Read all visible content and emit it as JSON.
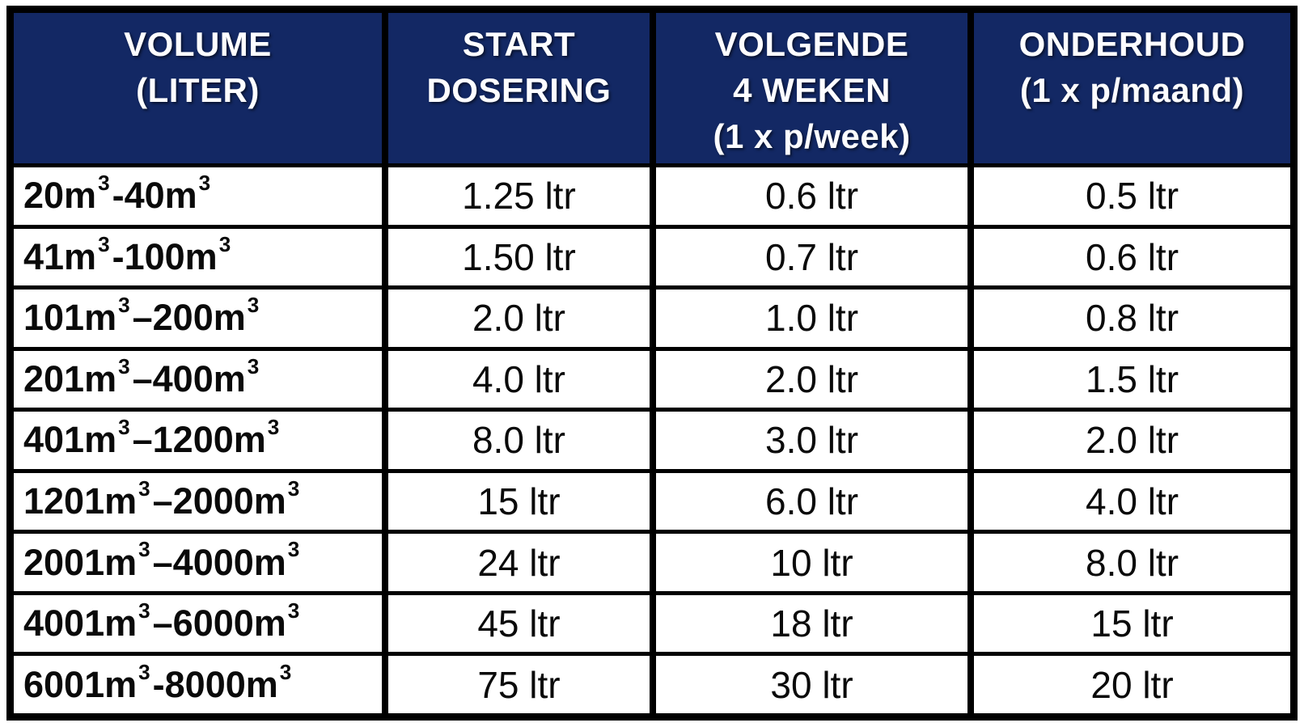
{
  "cube": "3",
  "colors": {
    "header_bg": "#132864",
    "header_text": "#ffffff",
    "body_text": "#000000",
    "grid_lines": "#000000",
    "row_bg": "#ffffff"
  },
  "header": {
    "cols": [
      {
        "lines": [
          "VOLUME",
          "(LITER)"
        ]
      },
      {
        "lines": [
          "START",
          "DOSERING"
        ]
      },
      {
        "lines": [
          "VOLGENDE",
          "4 WEKEN",
          "(1 x p/week)"
        ]
      },
      {
        "lines": [
          "ONDERHOUD",
          "(1 x p/maand)"
        ]
      }
    ]
  },
  "rows": [
    {
      "vol1": "20m",
      "dash": " - ",
      "vol2": "40m",
      "start": "1.25 ltr",
      "weekly": "0.6 ltr",
      "monthly": "0.5 ltr"
    },
    {
      "vol1": "41m",
      "dash": " - ",
      "vol2": "100m",
      "start": "1.50 ltr",
      "weekly": "0.7 ltr",
      "monthly": "0.6 ltr"
    },
    {
      "vol1": "101m",
      "dash": " – ",
      "vol2": "200m",
      "start": "2.0 ltr",
      "weekly": "1.0 ltr",
      "monthly": "0.8 ltr"
    },
    {
      "vol1": "201m",
      "dash": " – ",
      "vol2": "400m",
      "start": "4.0 ltr",
      "weekly": "2.0 ltr",
      "monthly": "1.5 ltr"
    },
    {
      "vol1": "401m",
      "dash": " – ",
      "vol2": "1200m",
      "start": "8.0 ltr",
      "weekly": "3.0 ltr",
      "monthly": "2.0 ltr"
    },
    {
      "vol1": "1201m",
      "dash": " – ",
      "vol2": "2000m",
      "start": "15 ltr",
      "weekly": "6.0 ltr",
      "monthly": "4.0 ltr"
    },
    {
      "vol1": "2001m",
      "dash": " – ",
      "vol2": "4000m",
      "start": "24 ltr",
      "weekly": "10 ltr",
      "monthly": "8.0 ltr"
    },
    {
      "vol1": "4001m",
      "dash": " – ",
      "vol2": "6000m",
      "start": "45 ltr",
      "weekly": "18 ltr",
      "monthly": "15 ltr"
    },
    {
      "vol1": "6001m",
      "dash": "- ",
      "vol2": "8000m",
      "start": "75 ltr",
      "weekly": "30 ltr",
      "monthly": "20 ltr"
    }
  ],
  "chart_data": {
    "type": "table",
    "columns": [
      "VOLUME (LITER)",
      "START DOSERING",
      "VOLGENDE 4 WEKEN (1 x p/week)",
      "ONDERHOUD (1 x p/maand)"
    ],
    "rows": [
      [
        "20m³ - 40m³",
        "1.25 ltr",
        "0.6 ltr",
        "0.5 ltr"
      ],
      [
        "41m³ - 100m³",
        "1.50 ltr",
        "0.7 ltr",
        "0.6 ltr"
      ],
      [
        "101m³ – 200m³",
        "2.0 ltr",
        "1.0 ltr",
        "0.8 ltr"
      ],
      [
        "201m³ – 400m³",
        "4.0 ltr",
        "2.0 ltr",
        "1.5 ltr"
      ],
      [
        "401m³ – 1200m³",
        "8.0 ltr",
        "3.0 ltr",
        "2.0 ltr"
      ],
      [
        "1201m³ – 2000m³",
        "15 ltr",
        "6.0 ltr",
        "4.0 ltr"
      ],
      [
        "2001m³ – 4000m³",
        "24 ltr",
        "10 ltr",
        "8.0 ltr"
      ],
      [
        "4001m³ – 6000m³",
        "45 ltr",
        "18 ltr",
        "15 ltr"
      ],
      [
        "6001m³- 8000m³",
        "75 ltr",
        "30 ltr",
        "20 ltr"
      ]
    ]
  }
}
